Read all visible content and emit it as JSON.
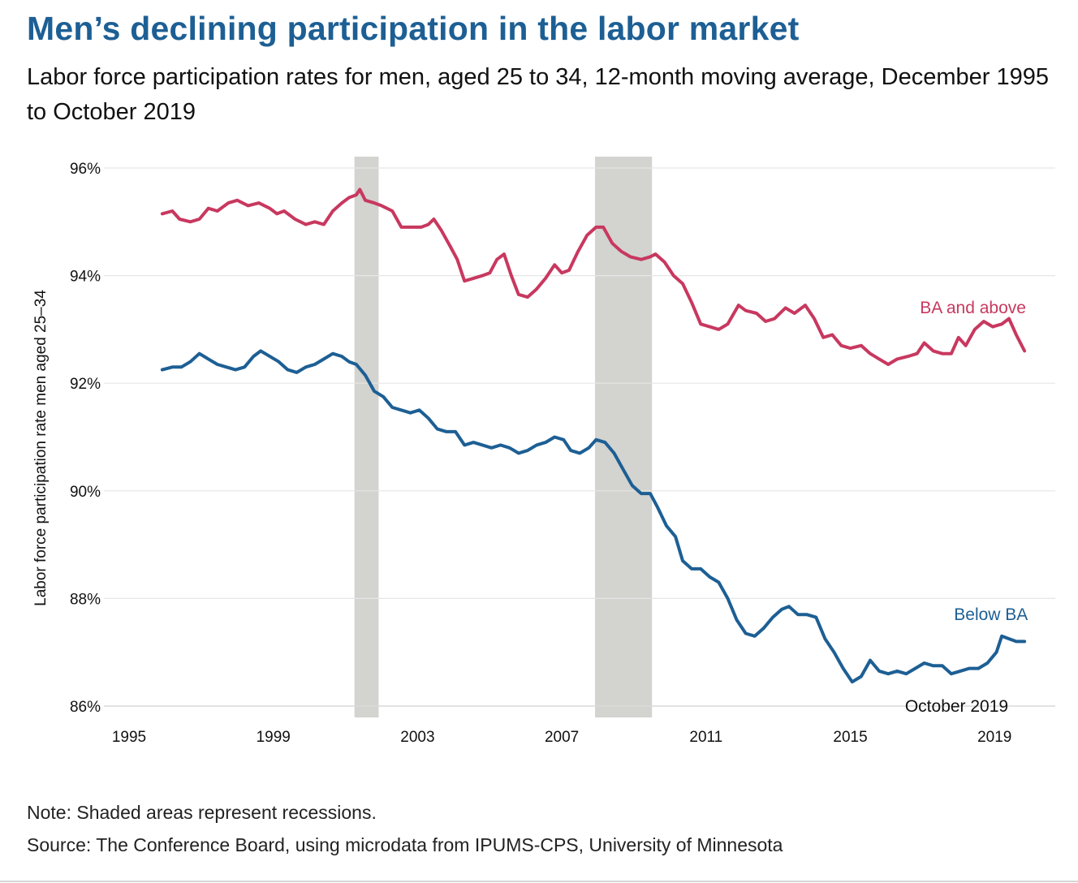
{
  "header": {
    "title": "Men’s declining participation in the labor market",
    "subtitle": "Labor force participation rates for men, aged 25 to 34, 12-month moving average, December 1995 to October 2019"
  },
  "footer": {
    "note": "Note: Shaded areas represent recessions.",
    "source": "Source: The Conference Board, using microdata from IPUMS-CPS, University of Minnesota"
  },
  "chart_data": {
    "type": "line",
    "title": "Men’s declining participation in the labor market",
    "ylabel": "Labor force participation rate men aged 25–34",
    "xlabel": "",
    "xlim": [
      1995,
      2020.3
    ],
    "ylim": [
      86,
      96
    ],
    "x_ticks": [
      "1995",
      "1999",
      "2003",
      "2007",
      "2011",
      "2015",
      "2019"
    ],
    "y_ticks": [
      "86%",
      "88%",
      "90%",
      "92%",
      "94%",
      "96%"
    ],
    "grid": true,
    "recessions": [
      {
        "start": 2001.25,
        "end": 2001.92
      },
      {
        "start": 2007.92,
        "end": 2009.5
      }
    ],
    "colors": {
      "ba_and_above": "#c8385f",
      "below_ba": "#1d5f94",
      "recession": "#d3d3d0",
      "grid": "#e6e6e6"
    },
    "annotation": {
      "text": "October 2019",
      "x": 2019.83
    },
    "series": [
      {
        "name": "BA and above",
        "label_key": "ba",
        "points": [
          [
            1995.92,
            95.15
          ],
          [
            1996.2,
            95.2
          ],
          [
            1996.4,
            95.05
          ],
          [
            1996.7,
            95.0
          ],
          [
            1996.95,
            95.05
          ],
          [
            1997.2,
            95.25
          ],
          [
            1997.45,
            95.2
          ],
          [
            1997.75,
            95.35
          ],
          [
            1998.0,
            95.4
          ],
          [
            1998.3,
            95.3
          ],
          [
            1998.6,
            95.35
          ],
          [
            1998.9,
            95.25
          ],
          [
            1999.1,
            95.15
          ],
          [
            1999.3,
            95.2
          ],
          [
            1999.6,
            95.05
          ],
          [
            1999.9,
            94.95
          ],
          [
            2000.15,
            95.0
          ],
          [
            2000.4,
            94.95
          ],
          [
            2000.65,
            95.2
          ],
          [
            2000.9,
            95.35
          ],
          [
            2001.1,
            95.45
          ],
          [
            2001.3,
            95.5
          ],
          [
            2001.4,
            95.6
          ],
          [
            2001.55,
            95.4
          ],
          [
            2001.8,
            95.35
          ],
          [
            2002.0,
            95.3
          ],
          [
            2002.3,
            95.2
          ],
          [
            2002.55,
            94.9
          ],
          [
            2002.8,
            94.9
          ],
          [
            2003.1,
            94.9
          ],
          [
            2003.3,
            94.95
          ],
          [
            2003.45,
            95.05
          ],
          [
            2003.65,
            94.85
          ],
          [
            2003.9,
            94.55
          ],
          [
            2004.1,
            94.3
          ],
          [
            2004.3,
            93.9
          ],
          [
            2004.55,
            93.95
          ],
          [
            2004.8,
            94.0
          ],
          [
            2005.0,
            94.05
          ],
          [
            2005.2,
            94.3
          ],
          [
            2005.4,
            94.4
          ],
          [
            2005.6,
            94.0
          ],
          [
            2005.8,
            93.65
          ],
          [
            2006.05,
            93.6
          ],
          [
            2006.3,
            93.75
          ],
          [
            2006.55,
            93.95
          ],
          [
            2006.8,
            94.2
          ],
          [
            2007.0,
            94.05
          ],
          [
            2007.2,
            94.1
          ],
          [
            2007.45,
            94.45
          ],
          [
            2007.7,
            94.75
          ],
          [
            2007.95,
            94.9
          ],
          [
            2008.15,
            94.9
          ],
          [
            2008.4,
            94.6
          ],
          [
            2008.65,
            94.45
          ],
          [
            2008.9,
            94.35
          ],
          [
            2009.2,
            94.3
          ],
          [
            2009.45,
            94.35
          ],
          [
            2009.6,
            94.4
          ],
          [
            2009.85,
            94.25
          ],
          [
            2010.1,
            94.0
          ],
          [
            2010.35,
            93.85
          ],
          [
            2010.6,
            93.5
          ],
          [
            2010.85,
            93.1
          ],
          [
            2011.1,
            93.05
          ],
          [
            2011.35,
            93.0
          ],
          [
            2011.6,
            93.1
          ],
          [
            2011.9,
            93.45
          ],
          [
            2012.1,
            93.35
          ],
          [
            2012.4,
            93.3
          ],
          [
            2012.65,
            93.15
          ],
          [
            2012.9,
            93.2
          ],
          [
            2013.2,
            93.4
          ],
          [
            2013.45,
            93.3
          ],
          [
            2013.75,
            93.45
          ],
          [
            2014.0,
            93.2
          ],
          [
            2014.25,
            92.85
          ],
          [
            2014.5,
            92.9
          ],
          [
            2014.75,
            92.7
          ],
          [
            2015.0,
            92.65
          ],
          [
            2015.3,
            92.7
          ],
          [
            2015.55,
            92.55
          ],
          [
            2015.8,
            92.45
          ],
          [
            2016.05,
            92.35
          ],
          [
            2016.3,
            92.45
          ],
          [
            2016.6,
            92.5
          ],
          [
            2016.85,
            92.55
          ],
          [
            2017.05,
            92.75
          ],
          [
            2017.3,
            92.6
          ],
          [
            2017.55,
            92.55
          ],
          [
            2017.8,
            92.55
          ],
          [
            2018.0,
            92.85
          ],
          [
            2018.2,
            92.7
          ],
          [
            2018.45,
            93.0
          ],
          [
            2018.7,
            93.15
          ],
          [
            2018.95,
            93.05
          ],
          [
            2019.2,
            93.1
          ],
          [
            2019.4,
            93.2
          ],
          [
            2019.6,
            92.9
          ],
          [
            2019.83,
            92.6
          ]
        ]
      },
      {
        "name": "Below BA",
        "label_key": "below",
        "points": [
          [
            1995.92,
            92.25
          ],
          [
            1996.2,
            92.3
          ],
          [
            1996.45,
            92.3
          ],
          [
            1996.7,
            92.4
          ],
          [
            1996.95,
            92.55
          ],
          [
            1997.2,
            92.45
          ],
          [
            1997.45,
            92.35
          ],
          [
            1997.7,
            92.3
          ],
          [
            1997.95,
            92.25
          ],
          [
            1998.2,
            92.3
          ],
          [
            1998.45,
            92.5
          ],
          [
            1998.65,
            92.6
          ],
          [
            1998.9,
            92.5
          ],
          [
            1999.15,
            92.4
          ],
          [
            1999.4,
            92.25
          ],
          [
            1999.65,
            92.2
          ],
          [
            1999.9,
            92.3
          ],
          [
            2000.15,
            92.35
          ],
          [
            2000.4,
            92.45
          ],
          [
            2000.65,
            92.55
          ],
          [
            2000.9,
            92.5
          ],
          [
            2001.1,
            92.4
          ],
          [
            2001.3,
            92.35
          ],
          [
            2001.55,
            92.15
          ],
          [
            2001.8,
            91.85
          ],
          [
            2002.05,
            91.75
          ],
          [
            2002.3,
            91.55
          ],
          [
            2002.55,
            91.5
          ],
          [
            2002.8,
            91.45
          ],
          [
            2003.05,
            91.5
          ],
          [
            2003.3,
            91.35
          ],
          [
            2003.55,
            91.15
          ],
          [
            2003.8,
            91.1
          ],
          [
            2004.05,
            91.1
          ],
          [
            2004.3,
            90.85
          ],
          [
            2004.55,
            90.9
          ],
          [
            2004.8,
            90.85
          ],
          [
            2005.05,
            90.8
          ],
          [
            2005.3,
            90.85
          ],
          [
            2005.55,
            90.8
          ],
          [
            2005.8,
            90.7
          ],
          [
            2006.05,
            90.75
          ],
          [
            2006.3,
            90.85
          ],
          [
            2006.55,
            90.9
          ],
          [
            2006.8,
            91.0
          ],
          [
            2007.05,
            90.95
          ],
          [
            2007.25,
            90.75
          ],
          [
            2007.5,
            90.7
          ],
          [
            2007.75,
            90.8
          ],
          [
            2007.95,
            90.95
          ],
          [
            2008.2,
            90.9
          ],
          [
            2008.45,
            90.7
          ],
          [
            2008.7,
            90.4
          ],
          [
            2008.95,
            90.1
          ],
          [
            2009.2,
            89.95
          ],
          [
            2009.45,
            89.95
          ],
          [
            2009.65,
            89.7
          ],
          [
            2009.9,
            89.35
          ],
          [
            2010.15,
            89.15
          ],
          [
            2010.35,
            88.7
          ],
          [
            2010.6,
            88.55
          ],
          [
            2010.85,
            88.55
          ],
          [
            2011.1,
            88.4
          ],
          [
            2011.35,
            88.3
          ],
          [
            2011.6,
            88.0
          ],
          [
            2011.85,
            87.6
          ],
          [
            2012.1,
            87.35
          ],
          [
            2012.35,
            87.3
          ],
          [
            2012.6,
            87.45
          ],
          [
            2012.85,
            87.65
          ],
          [
            2013.1,
            87.8
          ],
          [
            2013.3,
            87.85
          ],
          [
            2013.55,
            87.7
          ],
          [
            2013.8,
            87.7
          ],
          [
            2014.05,
            87.65
          ],
          [
            2014.3,
            87.25
          ],
          [
            2014.55,
            87.0
          ],
          [
            2014.8,
            86.7
          ],
          [
            2015.05,
            86.45
          ],
          [
            2015.3,
            86.55
          ],
          [
            2015.55,
            86.85
          ],
          [
            2015.8,
            86.65
          ],
          [
            2016.05,
            86.6
          ],
          [
            2016.3,
            86.65
          ],
          [
            2016.55,
            86.6
          ],
          [
            2016.8,
            86.7
          ],
          [
            2017.05,
            86.8
          ],
          [
            2017.3,
            86.75
          ],
          [
            2017.55,
            86.75
          ],
          [
            2017.8,
            86.6
          ],
          [
            2018.05,
            86.65
          ],
          [
            2018.3,
            86.7
          ],
          [
            2018.55,
            86.7
          ],
          [
            2018.8,
            86.8
          ],
          [
            2019.05,
            87.0
          ],
          [
            2019.2,
            87.3
          ],
          [
            2019.4,
            87.25
          ],
          [
            2019.6,
            87.2
          ],
          [
            2019.83,
            87.2
          ]
        ]
      }
    ],
    "series_labels": {
      "ba": {
        "text": "BA and above",
        "x": 2018.4,
        "y": 93.3
      },
      "below": {
        "text": "Below BA",
        "x": 2018.9,
        "y": 87.6
      }
    }
  }
}
